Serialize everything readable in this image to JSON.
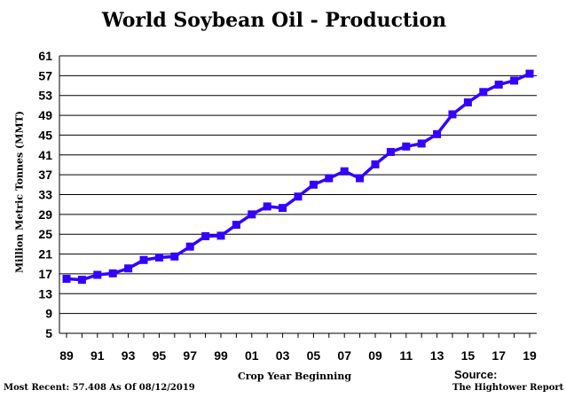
{
  "chart_data": {
    "type": "line",
    "title": "World Soybean Oil - Production",
    "xlabel": "Crop Year Beginning",
    "ylabel": "Million Metric Tonnes (MMT)",
    "ylim": [
      5,
      61
    ],
    "yticks": [
      5,
      9,
      13,
      17,
      21,
      25,
      29,
      33,
      37,
      41,
      45,
      49,
      53,
      57,
      61
    ],
    "x": [
      1989,
      1990,
      1991,
      1992,
      1993,
      1994,
      1995,
      1996,
      1997,
      1998,
      1999,
      2000,
      2001,
      2002,
      2003,
      2004,
      2005,
      2006,
      2007,
      2008,
      2009,
      2010,
      2011,
      2012,
      2013,
      2014,
      2015,
      2016,
      2017,
      2018,
      2019
    ],
    "xtick_labels": [
      "89",
      "91",
      "93",
      "95",
      "97",
      "99",
      "01",
      "03",
      "05",
      "07",
      "09",
      "11",
      "13",
      "15",
      "17",
      "19"
    ],
    "xtick_years": [
      1989,
      1991,
      1993,
      1995,
      1997,
      1999,
      2001,
      2003,
      2005,
      2007,
      2009,
      2011,
      2013,
      2015,
      2017,
      2019
    ],
    "series": [
      {
        "name": "",
        "color": "#3300ff",
        "values": [
          16.0,
          15.8,
          16.8,
          17.1,
          18.1,
          19.8,
          20.3,
          20.5,
          22.5,
          24.6,
          24.7,
          26.9,
          29.0,
          30.6,
          30.3,
          32.6,
          35.0,
          36.3,
          37.7,
          36.3,
          39.1,
          41.6,
          42.7,
          43.3,
          45.2,
          49.2,
          51.6,
          53.7,
          55.2,
          56.0,
          57.4
        ]
      }
    ],
    "grid": true,
    "footer_left": "Most Recent: 57.408 As Of 08/12/2019",
    "source_label": "Source:",
    "source_value": "The Hightower Report"
  }
}
